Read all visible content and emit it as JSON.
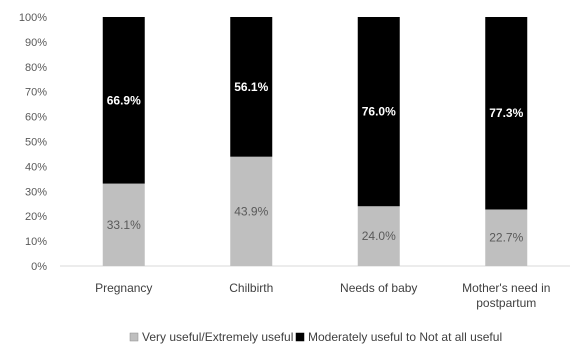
{
  "chart_data": {
    "type": "bar",
    "stacked": true,
    "categories": [
      [
        "Pregnancy"
      ],
      [
        "Chilbirth"
      ],
      [
        "Needs of baby"
      ],
      [
        "Mother's need in",
        "postpartum"
      ]
    ],
    "series": [
      {
        "name": "Very useful/Extremely useful",
        "values": [
          33.1,
          43.9,
          24.0,
          22.7
        ],
        "labels": [
          "33.1%",
          "43.9%",
          "24.0%",
          "22.7%"
        ],
        "color": "#bfbfbf",
        "label_color": "#595959"
      },
      {
        "name": "Moderately useful to Not at all useful",
        "values": [
          66.9,
          56.1,
          76.0,
          77.3
        ],
        "labels": [
          "66.9%",
          "56.1%",
          "76.0%",
          "77.3%"
        ],
        "color": "#000000",
        "label_color": "#ffffff"
      }
    ],
    "y_ticks": [
      "0%",
      "10%",
      "20%",
      "30%",
      "40%",
      "50%",
      "60%",
      "70%",
      "80%",
      "90%",
      "100%"
    ],
    "ylim": [
      0,
      100
    ],
    "grid": false,
    "legend_position": "bottom"
  }
}
